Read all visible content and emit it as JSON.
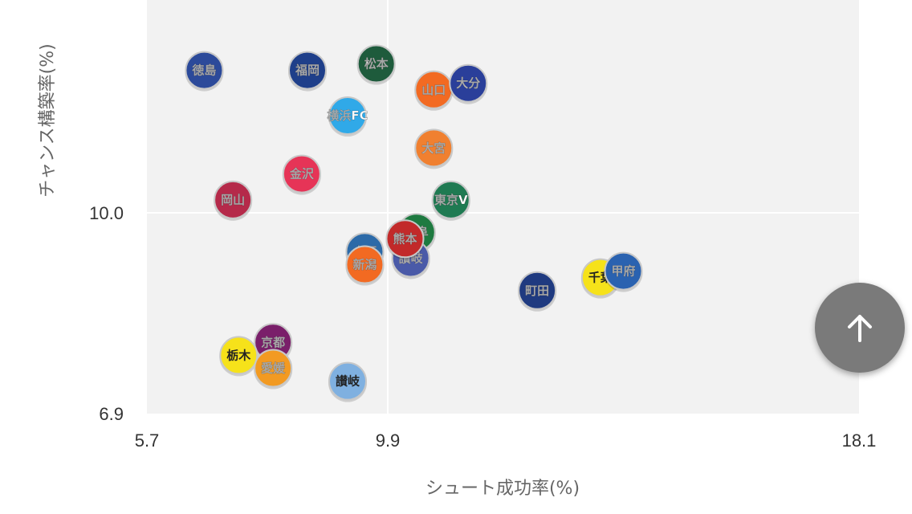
{
  "chart_data": {
    "type": "scatter",
    "xlabel": "シュート成功率(%)",
    "ylabel": "チャンス構築率(%)",
    "xlim": [
      5.7,
      18.1
    ],
    "ylim": [
      6.9,
      13.2
    ],
    "x_ticks": [
      "5.7",
      "9.9",
      "18.1"
    ],
    "y_ticks": [
      "6.9",
      "10.0"
    ],
    "grid": true,
    "points": [
      {
        "name": "徳島",
        "x": 6.7,
        "y": 12.2,
        "color": "#2c4a9a"
      },
      {
        "name": "福岡",
        "x": 8.5,
        "y": 12.2,
        "color": "#1f3f8a"
      },
      {
        "name": "松本",
        "x": 9.7,
        "y": 12.3,
        "color": "#1e5b3c"
      },
      {
        "name": "山口",
        "x": 10.7,
        "y": 11.9,
        "color": "#f26a22"
      },
      {
        "name": "大分",
        "x": 11.3,
        "y": 12.0,
        "color": "#2a3f9a"
      },
      {
        "name": "横浜FC",
        "x": 9.2,
        "y": 11.5,
        "color": "#30a9e8"
      },
      {
        "name": "大宮",
        "x": 10.7,
        "y": 11.0,
        "color": "#f08030"
      },
      {
        "name": "金沢",
        "x": 8.4,
        "y": 10.6,
        "color": "#e63457"
      },
      {
        "name": "東京V",
        "x": 11.0,
        "y": 10.2,
        "color": "#1f7a52"
      },
      {
        "name": "岡山",
        "x": 7.2,
        "y": 10.2,
        "color": "#b52a4a"
      },
      {
        "name": "水戸",
        "x": 9.5,
        "y": 9.4,
        "color": "#2c6aa8"
      },
      {
        "name": "新潟",
        "x": 9.5,
        "y": 9.2,
        "color": "#f26a22"
      },
      {
        "name": "岐阜",
        "x": 10.4,
        "y": 9.7,
        "color": "#1e7a40"
      },
      {
        "name": "讃岐",
        "x": 10.3,
        "y": 9.3,
        "color": "#4a5aa8"
      },
      {
        "name": "熊本",
        "x": 10.2,
        "y": 9.6,
        "color": "#c22a2a"
      },
      {
        "name": "町田",
        "x": 12.5,
        "y": 8.8,
        "color": "#1f3a80"
      },
      {
        "name": "千葉",
        "x": 13.6,
        "y": 9.0,
        "color": "#f6e21a"
      },
      {
        "name": "甲府",
        "x": 14.0,
        "y": 9.1,
        "color": "#2a62b0"
      },
      {
        "name": "京都",
        "x": 7.9,
        "y": 8.0,
        "color": "#7a1f6a"
      },
      {
        "name": "栃木",
        "x": 7.3,
        "y": 7.8,
        "color": "#f6e21a"
      },
      {
        "name": "愛媛",
        "x": 7.9,
        "y": 7.6,
        "color": "#f29a22"
      },
      {
        "name": "讃岐",
        "x": 9.2,
        "y": 7.4,
        "color": "#7fb0e0"
      }
    ]
  },
  "scroll_top": {
    "icon": "arrow-up-icon"
  }
}
